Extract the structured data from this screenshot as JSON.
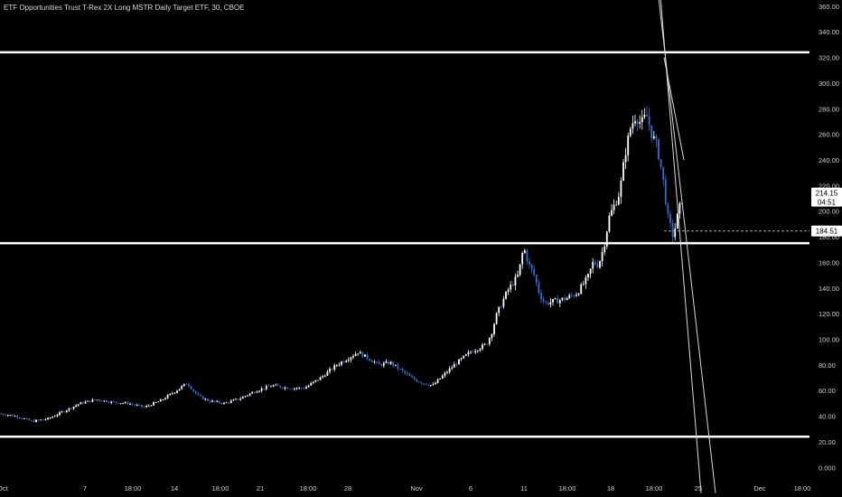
{
  "header": {
    "title": "ETF Opportunities Trust T-Rex 2X Long MSTR Daily Target ETF, 30, CBOE"
  },
  "colors": {
    "background": "#000000",
    "candle_up": "#ffffff",
    "candle_down": "#2f6fd0",
    "line": "#ffffff",
    "tag_fill": "#ffffff"
  },
  "current_price": {
    "value": "214.15",
    "countdown": "04:51"
  },
  "marker_price": {
    "value": "184.51"
  },
  "chart_data": {
    "type": "candlestick",
    "title": "ETF Opportunities Trust T-Rex 2X Long MSTR Daily Target ETF, 30, CBOE",
    "y_axis": {
      "ticks": [
        "0.000",
        "20.00",
        "40.00",
        "60.00",
        "80.00",
        "100.00",
        "120.00",
        "140.00",
        "160.00",
        "180.00",
        "200.00",
        "220.00",
        "240.00",
        "260.00",
        "280.00",
        "300.00",
        "320.00",
        "340.00",
        "360.00"
      ],
      "range": [
        -4,
        362
      ],
      "position": "right"
    },
    "x_axis": {
      "ticks": [
        "Oct",
        "7",
        "18:00",
        "14",
        "18:00",
        "21",
        "18:00",
        "28",
        "Nov",
        "6",
        "11",
        "18:00",
        "18",
        "18:00",
        "25",
        "Dec",
        "18:00"
      ],
      "range": [
        "Oct 1",
        "Dec 2"
      ]
    },
    "horizontal_levels": [
      324,
      175,
      24
    ],
    "price_path": [
      [
        0,
        42
      ],
      [
        3,
        40
      ],
      [
        6,
        36
      ],
      [
        9,
        38
      ],
      [
        12,
        44
      ],
      [
        15,
        50
      ],
      [
        18,
        53
      ],
      [
        21,
        51
      ],
      [
        24,
        50
      ],
      [
        27,
        47
      ],
      [
        30,
        52
      ],
      [
        33,
        60
      ],
      [
        35,
        66
      ],
      [
        37,
        56
      ],
      [
        39,
        52
      ],
      [
        42,
        50
      ],
      [
        45,
        54
      ],
      [
        48,
        60
      ],
      [
        51,
        64
      ],
      [
        54,
        62
      ],
      [
        57,
        62
      ],
      [
        60,
        70
      ],
      [
        63,
        80
      ],
      [
        65,
        85
      ],
      [
        67,
        90
      ],
      [
        69,
        85
      ],
      [
        71,
        80
      ],
      [
        73,
        82
      ],
      [
        75,
        76
      ],
      [
        77,
        70
      ],
      [
        79,
        66
      ],
      [
        81,
        64
      ],
      [
        82,
        68
      ],
      [
        83,
        72
      ],
      [
        85,
        80
      ],
      [
        88,
        90
      ],
      [
        91,
        96
      ],
      [
        92,
        105
      ],
      [
        93,
        120
      ],
      [
        95,
        138
      ],
      [
        97,
        150
      ],
      [
        98,
        172
      ],
      [
        99,
        158
      ],
      [
        100,
        150
      ],
      [
        101,
        135
      ],
      [
        102,
        128
      ],
      [
        104,
        130
      ],
      [
        106,
        132
      ],
      [
        108,
        136
      ],
      [
        110,
        148
      ],
      [
        111,
        160
      ],
      [
        112,
        158
      ],
      [
        113,
        172
      ],
      [
        114,
        195
      ],
      [
        116,
        215
      ],
      [
        117,
        245
      ],
      [
        118,
        265
      ],
      [
        119,
        275
      ],
      [
        120,
        268
      ],
      [
        121,
        275
      ],
      [
        122,
        260
      ],
      [
        123,
        250
      ],
      [
        124,
        228
      ],
      [
        125,
        195
      ],
      [
        126,
        180
      ],
      [
        127,
        200
      ],
      [
        128,
        214
      ]
    ],
    "trend_lines": [
      [
        [
          "Nov 24",
          385
        ],
        [
          "Nov 27",
          -20
        ]
      ],
      [
        [
          "Nov 24",
          385
        ],
        [
          "Nov 26",
          -20
        ]
      ],
      [
        [
          "Nov 23",
          320
        ],
        [
          "Nov 24",
          240
        ]
      ]
    ],
    "last_value": 214.15,
    "reference_value": 184.51,
    "grid": false,
    "legend": "none"
  }
}
